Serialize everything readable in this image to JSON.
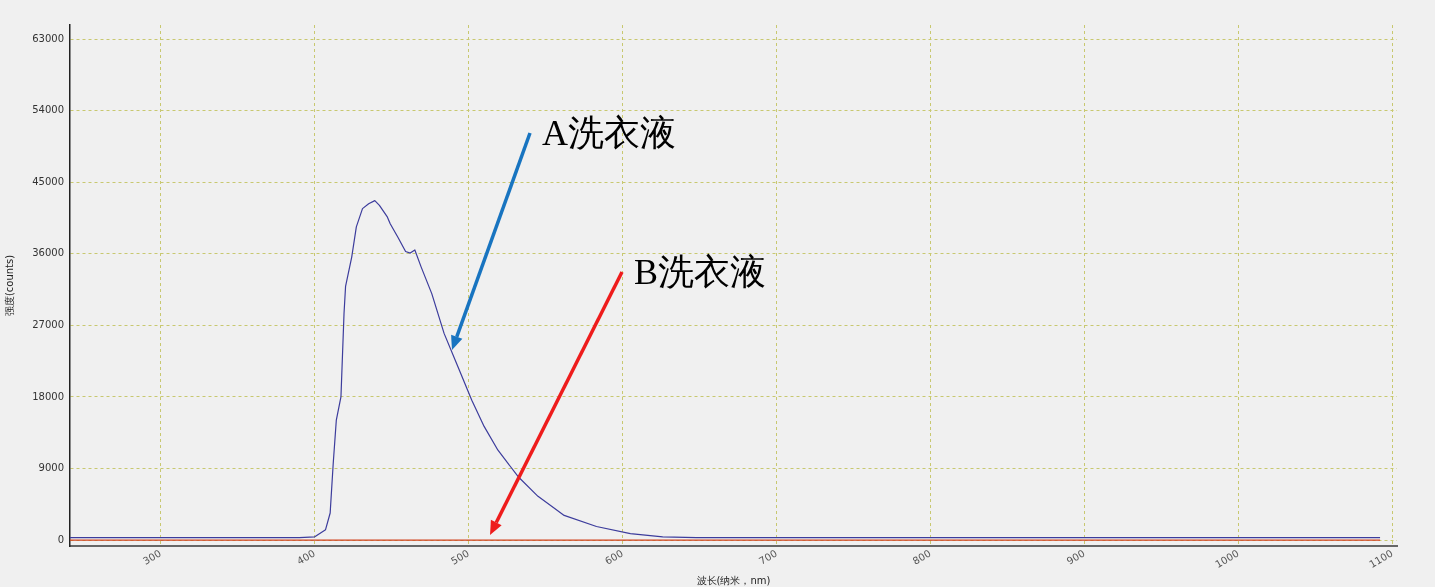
{
  "chart_data": {
    "type": "line",
    "xlabel": "波长(纳米，nm)",
    "ylabel": "强度(counts)",
    "xlim": [
      241,
      1103
    ],
    "xticks": [
      300,
      400,
      500,
      600,
      700,
      800,
      900,
      1000,
      1100
    ],
    "ylim": [
      -750,
      64800
    ],
    "yticks": [
      0,
      9000,
      18000,
      27000,
      36000,
      45000,
      54000,
      63000
    ],
    "grid": true,
    "legend": false,
    "marker": "none",
    "line_style": "solid",
    "series": [
      {
        "color": "#3c3c9c",
        "x": [
          241,
          390,
          400,
          407,
          410,
          412,
          414,
          417,
          419,
          420,
          424,
          427,
          431,
          435,
          439,
          442,
          447,
          449,
          454,
          459,
          462,
          465,
          469,
          476,
          484,
          493,
          502,
          510,
          519,
          532,
          545,
          562,
          583,
          605,
          626,
          648,
          700,
          800,
          900,
          1000,
          1092
        ],
        "values": [
          300,
          300,
          400,
          1300,
          3400,
          9700,
          15100,
          18000,
          28500,
          31900,
          35600,
          39400,
          41700,
          42300,
          42700,
          42100,
          40700,
          39800,
          38100,
          36300,
          36100,
          36500,
          34400,
          31000,
          26000,
          21800,
          17600,
          14300,
          11300,
          8000,
          5500,
          3100,
          1700,
          800,
          400,
          300,
          300,
          300,
          300,
          300,
          300
        ]
      },
      {
        "color": "#d0401c",
        "x": [
          241,
          400,
          500,
          600,
          700,
          800,
          900,
          1000,
          1092
        ],
        "values": [
          0,
          0,
          0,
          0,
          0,
          0,
          0,
          0,
          0
        ]
      }
    ],
    "annotations": [
      "A洗衣液",
      "B洗衣液"
    ]
  }
}
